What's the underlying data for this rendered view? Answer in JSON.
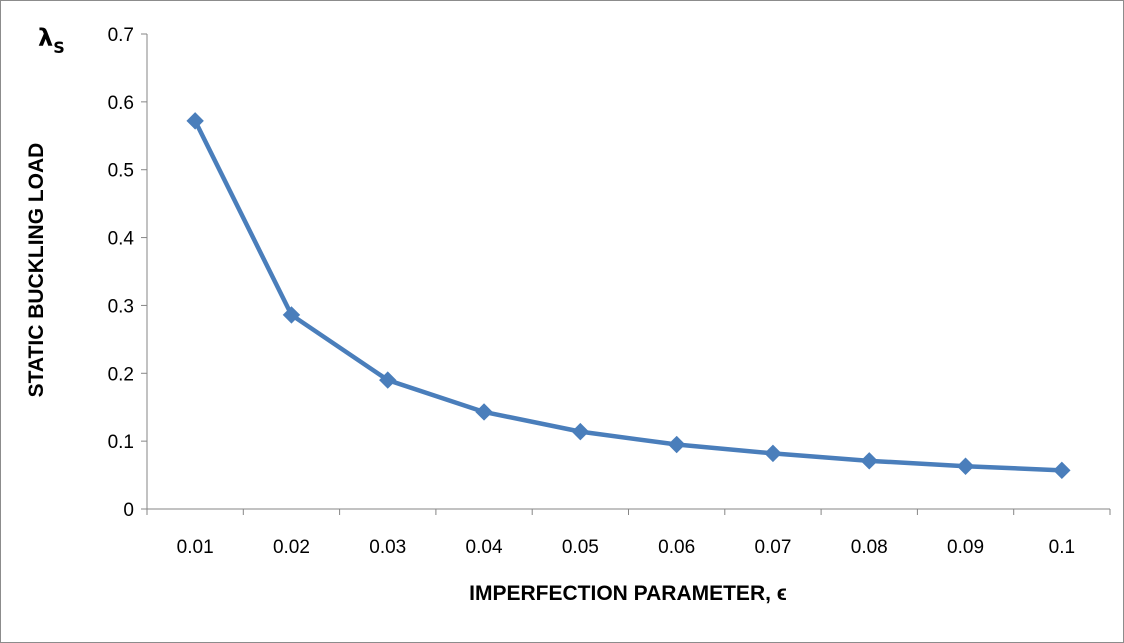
{
  "chart_data": {
    "type": "line",
    "xlabel": "IMPERFECTION PARAMETER, ϵ",
    "ylabel": "STATIC BUCKLING LOAD",
    "ysymbol": "λ",
    "ysymbol_sub": "S",
    "categories": [
      "0.01",
      "0.02",
      "0.03",
      "0.04",
      "0.05",
      "0.06",
      "0.07",
      "0.08",
      "0.09",
      "0.1"
    ],
    "y_ticks": [
      "0",
      "0.1",
      "0.2",
      "0.3",
      "0.4",
      "0.5",
      "0.6",
      "0.7"
    ],
    "ylim": [
      0,
      0.7
    ],
    "grid": false,
    "legend": "none",
    "series": [
      {
        "color": "#4a7ebb",
        "marker": "diamond",
        "values": [
          0.572,
          0.286,
          0.19,
          0.143,
          0.114,
          0.095,
          0.082,
          0.071,
          0.063,
          0.057
        ]
      }
    ]
  }
}
